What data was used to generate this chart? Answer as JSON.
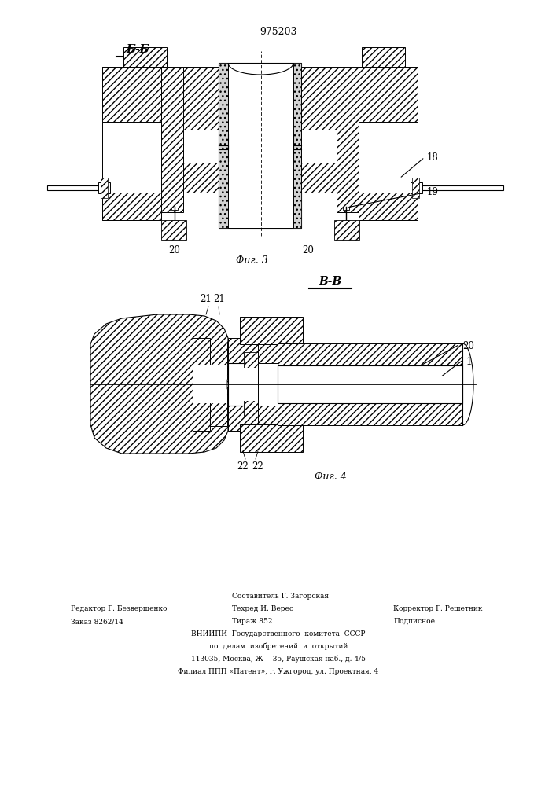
{
  "patent_number": "975203",
  "fig3_title": "Б-Б",
  "fig3_caption": "Фиг. 3",
  "fig4_title": "В-В",
  "fig4_caption": "Фиг. 4",
  "bg_color": "#ffffff",
  "footer": {
    "left1": "Редактор Г. Безвершенко",
    "left2": "Заказ 8262/14",
    "center1": "Составитель Г. Загорская",
    "center2": "Техред И. Верес",
    "center3": "Тираж 852",
    "right1": "Корректор Г. Решетник",
    "right2": "Подписное",
    "vniiphi1": "ВНИИПИ  Государственного  комитета  СССР",
    "vniiphi2": "по  делам  изобретений  и  открытий",
    "vniiphi3": "113035, Москва, Ж—-35, Раушская наб., д. 4/5",
    "vniiphi4": "Филиал ППП «Патент», г. Ужгород, ул. Проектная, 4"
  }
}
